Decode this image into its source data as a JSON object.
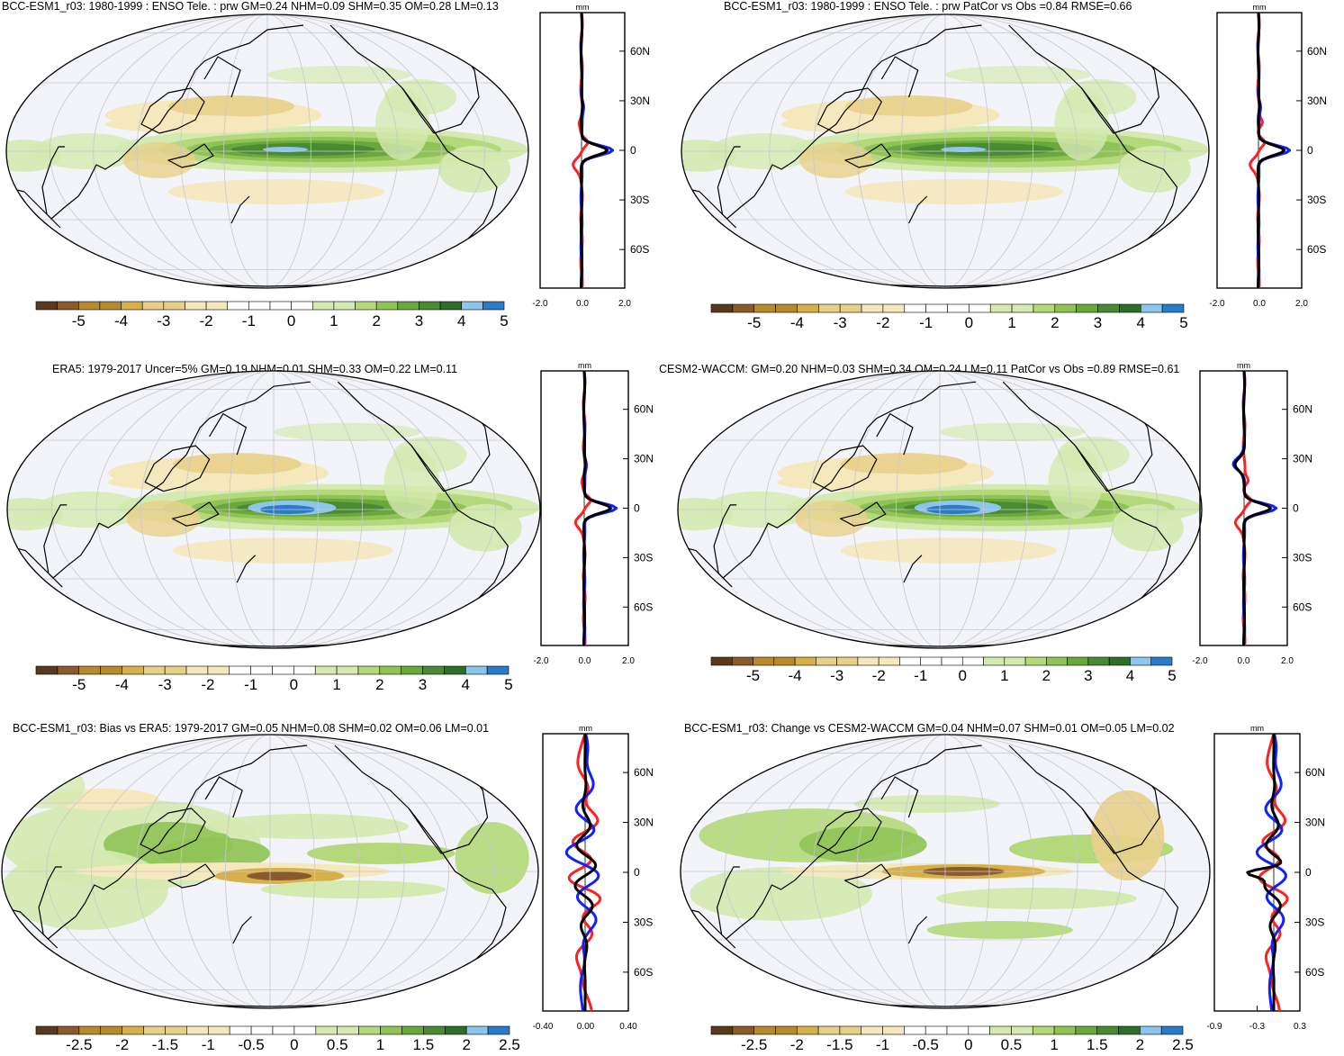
{
  "colors": {
    "div11": [
      "#5a3a1e",
      "#8a5a2b",
      "#b88a2e",
      "#d6b04a",
      "#e8d08a",
      "#f4e8bc",
      "#ffffff",
      "#d4eab0",
      "#b4d97a",
      "#8fc356",
      "#6aa83e",
      "#4a8a32",
      "#2e6e28",
      "#8cc6ec",
      "#2a7cc8"
    ],
    "ocean": "#f3f4fa",
    "grid": "#c8c8c8",
    "red": "#ff2020",
    "blue": "#1020ff",
    "black": "#000000"
  },
  "panels": [
    {
      "id": "p1",
      "title": "BCC-ESM1_r03: 1980-1999 : ENSO Tele. : prw GM=0.24 NHM=0.09 SHM=0.35 OM=0.28 LM=0.13",
      "cbar_labels": [
        "-5",
        "-4",
        "-3",
        "-2",
        "-1",
        "0",
        "1",
        "2",
        "3",
        "4",
        "5"
      ],
      "profile": {
        "unit": "mm",
        "xticks": [
          "-2.0",
          "0.0",
          "2.0"
        ],
        "yticks": [
          "60N",
          "30N",
          "0",
          "30S",
          "60S"
        ]
      }
    },
    {
      "id": "p2",
      "title": "BCC-ESM1_r03: 1980-1999 : ENSO Tele. : prw PatCor vs Obs =0.84 RMSE=0.66",
      "cbar_labels": [
        "-5",
        "-4",
        "-3",
        "-2",
        "-1",
        "0",
        "1",
        "2",
        "3",
        "4",
        "5"
      ],
      "profile": {
        "unit": "mm",
        "xticks": [
          "-2.0",
          "0.0",
          "2.0"
        ],
        "yticks": [
          "60N",
          "30N",
          "0",
          "30S",
          "60S"
        ]
      }
    },
    {
      "id": "p3",
      "title": "ERA5: 1979-2017 Uncer=5% GM=0.19 NHM=0.01 SHM=0.33 OM=0.22 LM=0.11",
      "cbar_labels": [
        "-5",
        "-4",
        "-3",
        "-2",
        "-1",
        "0",
        "1",
        "2",
        "3",
        "4",
        "5"
      ],
      "profile": {
        "unit": "mm",
        "xticks": [
          "-2.0",
          "0.0",
          "2.0"
        ],
        "yticks": [
          "60N",
          "30N",
          "0",
          "30S",
          "60S"
        ]
      }
    },
    {
      "id": "p4",
      "title": "CESM2-WACCM: GM=0.20 NHM=0.03 SHM=0.34 OM=0.24 LM=0.11 PatCor vs Obs =0.89 RMSE=0.61",
      "cbar_labels": [
        "-5",
        "-4",
        "-3",
        "-2",
        "-1",
        "0",
        "1",
        "2",
        "3",
        "4",
        "5"
      ],
      "profile": {
        "unit": "mm",
        "xticks": [
          "-2.0",
          "0.0",
          "2.0"
        ],
        "yticks": [
          "60N",
          "30N",
          "0",
          "30S",
          "60S"
        ]
      }
    },
    {
      "id": "p5",
      "title": "BCC-ESM1_r03: Bias vs ERA5: 1979-2017 GM=0.05 NHM=0.08 SHM=0.02 OM=0.06 LM=0.01",
      "cbar_labels": [
        "-2.5",
        "-2",
        "-1.5",
        "-1",
        "-0.5",
        "0",
        "0.5",
        "1",
        "1.5",
        "2",
        "2.5"
      ],
      "profile": {
        "unit": "mm",
        "xticks": [
          "-0.40",
          "0.00",
          "0.40"
        ],
        "yticks": [
          "60N",
          "30N",
          "0",
          "30S",
          "60S"
        ]
      }
    },
    {
      "id": "p6",
      "title": "BCC-ESM1_r03: Change vs CESM2-WACCM GM=0.04 NHM=0.07 SHM=0.01 OM=0.05 LM=0.02",
      "cbar_labels": [
        "-2.5",
        "-2",
        "-1.5",
        "-1",
        "-0.5",
        "0",
        "0.5",
        "1",
        "1.5",
        "2",
        "2.5"
      ],
      "profile": {
        "unit": "mm",
        "xticks": [
          "-0.9",
          "-0.3",
          "0.3"
        ],
        "yticks": [
          "60N",
          "30N",
          "0",
          "30S",
          "60S"
        ]
      }
    }
  ]
}
